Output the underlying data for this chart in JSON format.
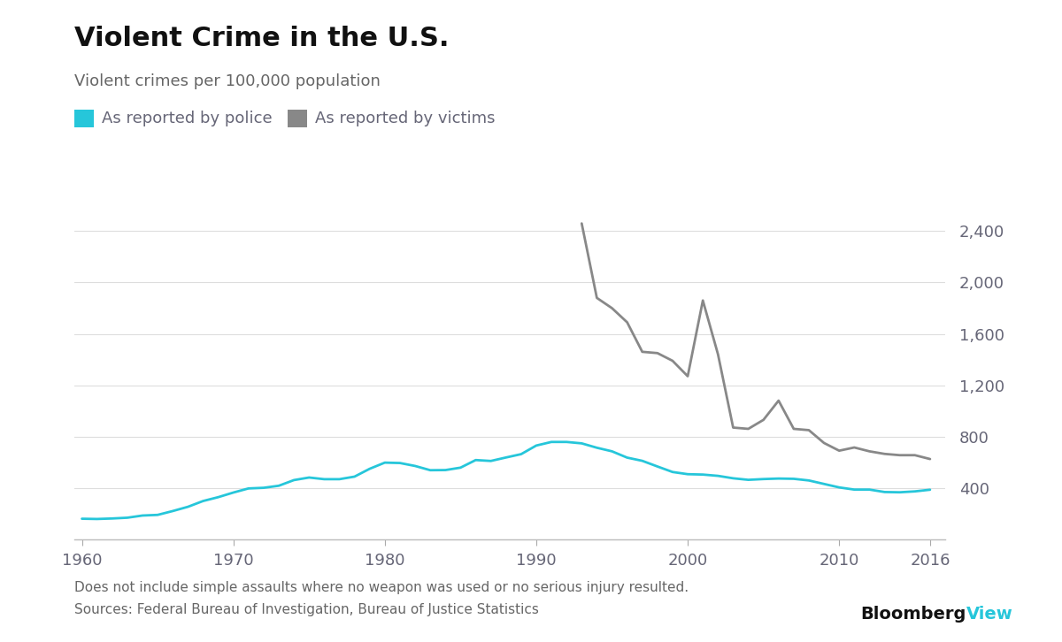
{
  "title": "Violent Crime in the U.S.",
  "subtitle": "Violent crimes per 100,000 population",
  "legend_police": "As reported by police",
  "legend_victims": "As reported by victims",
  "footnote1": "Does not include simple assaults where no weapon was used or no serious injury resulted.",
  "footnote2": "Sources: Federal Bureau of Investigation, Bureau of Justice Statistics",
  "branding_black": "Bloomberg",
  "branding_cyan": "View",
  "police_color": "#26C6DA",
  "victims_color": "#888888",
  "background_color": "#ffffff",
  "grid_color": "#dddddd",
  "tick_label_color": "#666677",
  "title_color": "#111111",
  "subtitle_color": "#666666",
  "footnote_color": "#666666",
  "title_fontsize": 22,
  "subtitle_fontsize": 13,
  "axis_fontsize": 13,
  "legend_fontsize": 13,
  "footnote_fontsize": 11,
  "branding_fontsize": 14,
  "police_data": {
    "years": [
      1960,
      1961,
      1962,
      1963,
      1964,
      1965,
      1966,
      1967,
      1968,
      1969,
      1970,
      1971,
      1972,
      1973,
      1974,
      1975,
      1976,
      1977,
      1978,
      1979,
      1980,
      1981,
      1982,
      1983,
      1984,
      1985,
      1986,
      1987,
      1988,
      1989,
      1990,
      1991,
      1992,
      1993,
      1994,
      1995,
      1996,
      1997,
      1998,
      1999,
      2000,
      2001,
      2002,
      2003,
      2004,
      2005,
      2006,
      2007,
      2008,
      2009,
      2010,
      2011,
      2012,
      2013,
      2014,
      2015,
      2016
    ],
    "values": [
      160,
      158,
      162,
      168,
      185,
      190,
      220,
      253,
      298,
      328,
      364,
      396,
      401,
      417,
      461,
      481,
      468,
      468,
      488,
      549,
      597,
      594,
      571,
      538,
      539,
      558,
      617,
      610,
      637,
      663,
      730,
      758,
      758,
      747,
      713,
      685,
      636,
      611,
      567,
      524,
      507,
      504,
      494,
      475,
      463,
      469,
      473,
      471,
      458,
      431,
      404,
      387,
      387,
      368,
      366,
      373,
      386
    ]
  },
  "victims_data": {
    "years": [
      1993,
      1994,
      1995,
      1996,
      1997,
      1998,
      1999,
      2000,
      2001,
      2002,
      2003,
      2004,
      2005,
      2006,
      2007,
      2008,
      2009,
      2010,
      2011,
      2012,
      2013,
      2014,
      2015,
      2016
    ],
    "values": [
      2460,
      1880,
      1800,
      1690,
      1460,
      1450,
      1390,
      1270,
      1860,
      1440,
      870,
      860,
      930,
      1080,
      860,
      850,
      750,
      690,
      715,
      685,
      665,
      655,
      655,
      625
    ]
  },
  "xlim": [
    1959.5,
    2017
  ],
  "ylim": [
    0,
    2600
  ],
  "yticks": [
    0,
    400,
    800,
    1200,
    1600,
    2000,
    2400
  ],
  "ytick_labels": [
    "",
    "400",
    "800",
    "1,200",
    "1,600",
    "2,000",
    "2,400"
  ],
  "xticks": [
    1960,
    1970,
    1980,
    1990,
    2000,
    2010,
    2016
  ]
}
